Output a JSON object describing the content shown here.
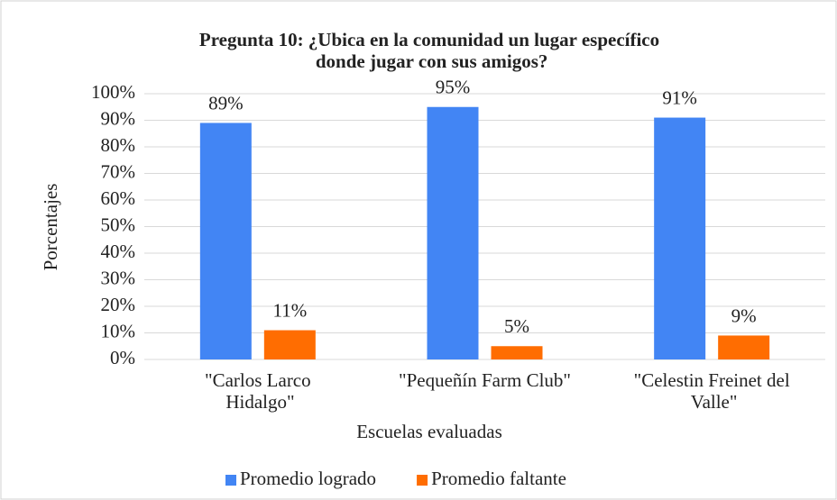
{
  "chart_data": {
    "type": "bar",
    "title": "Pregunta 10: ¿Ubica en la comunidad un lugar específico donde jugar con sus amigos?",
    "x_label": "Escuelas evaluadas",
    "y_label": "Porcentajes",
    "categories": [
      "\"Carlos Larco Hidalgo\"",
      "\"Pequeñín Farm Club\"",
      "\"Celestin Freinet del Valle\""
    ],
    "series": [
      {
        "name": "Promedio logrado",
        "color": "#4285f4",
        "values": [
          89,
          95,
          91
        ],
        "value_labels": [
          "89%",
          "95%",
          "91%"
        ]
      },
      {
        "name": "Promedio faltante",
        "color": "#ff6d01",
        "values": [
          11,
          5,
          9
        ],
        "value_labels": [
          "11%",
          "5%",
          "9%"
        ]
      }
    ],
    "ylim": [
      0,
      100
    ],
    "yticks": [
      {
        "value": 0,
        "label": "0%"
      },
      {
        "value": 10,
        "label": "10%"
      },
      {
        "value": 20,
        "label": "20%"
      },
      {
        "value": 30,
        "label": "30%"
      },
      {
        "value": 40,
        "label": "40%"
      },
      {
        "value": 50,
        "label": "50%"
      },
      {
        "value": 60,
        "label": "60%"
      },
      {
        "value": 70,
        "label": "70%"
      },
      {
        "value": 80,
        "label": "80%"
      },
      {
        "value": 90,
        "label": "90%"
      },
      {
        "value": 100,
        "label": "100%"
      }
    ],
    "grid": true,
    "legend": "bottom"
  }
}
